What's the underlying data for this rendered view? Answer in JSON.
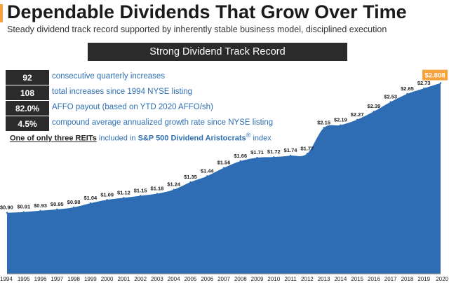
{
  "header": {
    "title": "Dependable Dividends That Grow Over Time",
    "subtitle": "Steady dividend track record supported by inherently stable business model, disciplined execution"
  },
  "banner": {
    "label": "Strong Dividend Track Record"
  },
  "stats": [
    {
      "value": "92",
      "text": "consecutive quarterly increases"
    },
    {
      "value": "108",
      "text": "total increases since 1994 NYSE listing"
    },
    {
      "value": "82.0%",
      "text": "AFFO payout (based on YTD 2020 AFFO/sh)"
    },
    {
      "value": "4.5%",
      "text": "compound average annualized growth rate since NYSE listing"
    }
  ],
  "note": {
    "part1": "One of only three REITs",
    "part2": " included in ",
    "part3": "S&P 500 Dividend Aristocrats",
    "sup": "®",
    "part4": " index"
  },
  "colors": {
    "area": "#2e6db4",
    "accent": "#f7a23b",
    "dark": "#2b2b2b",
    "text_blue": "#2f6fb3"
  },
  "chart_data": {
    "type": "area",
    "title": "Strong Dividend Track Record",
    "xlabel": "",
    "ylabel": "",
    "categories": [
      "1994",
      "1995",
      "1996",
      "1997",
      "1998",
      "1999",
      "2000",
      "2001",
      "2002",
      "2003",
      "2004",
      "2005",
      "2006",
      "2007",
      "2008",
      "2009",
      "2010",
      "2011",
      "2012",
      "2013",
      "2014",
      "2015",
      "2016",
      "2017",
      "2018",
      "2019",
      "2020"
    ],
    "values": [
      0.9,
      0.91,
      0.93,
      0.95,
      0.98,
      1.04,
      1.09,
      1.12,
      1.15,
      1.18,
      1.24,
      1.35,
      1.44,
      1.56,
      1.66,
      1.71,
      1.72,
      1.74,
      1.77,
      2.15,
      2.19,
      2.27,
      2.39,
      2.53,
      2.65,
      2.73,
      2.808
    ],
    "labels": [
      "$0.90",
      "$0.91",
      "$0.93",
      "$0.95",
      "$0.98",
      "$1.04",
      "$1.09",
      "$1.12",
      "$1.15",
      "$1.18",
      "$1.24",
      "$1.35",
      "$1.44",
      "$1.56",
      "$1.66",
      "$1.71",
      "$1.72",
      "$1.74",
      "$1.77",
      "$2.15",
      "$2.19",
      "$2.27",
      "$2.39",
      "$2.53",
      "$2.65",
      "$2.73",
      "$2.808"
    ],
    "highlight_last": true,
    "ylim": [
      0,
      3.0
    ],
    "grid": false
  }
}
